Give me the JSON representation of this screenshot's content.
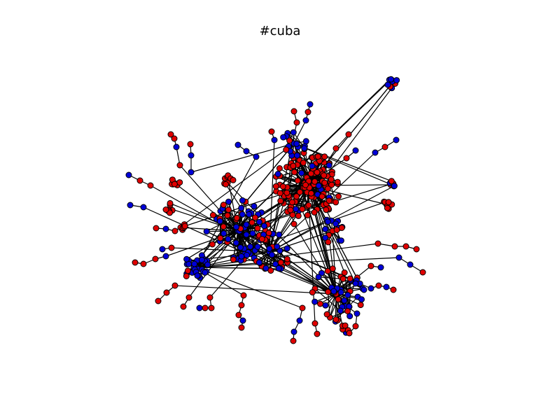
{
  "title": "#cuba",
  "colors": {
    "red": "#e00000",
    "blue": "#0000d8",
    "edge": "#000000",
    "background": "#ffffff"
  }
}
